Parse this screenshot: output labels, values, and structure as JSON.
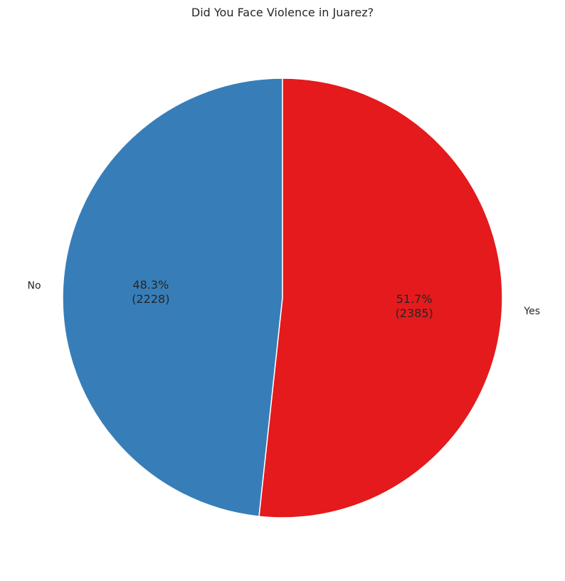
{
  "chart_data": {
    "type": "pie",
    "title": "Did You Face Violence in Juarez?",
    "categories": [
      "No",
      "Yes"
    ],
    "values": [
      2228,
      2385
    ],
    "percent_labels": [
      "48.3%",
      "51.7%"
    ],
    "count_labels": [
      "(2228)",
      "(2385)"
    ],
    "colors": [
      "#377eb8",
      "#e41a1c"
    ],
    "start_angle": "top, counterclockwise",
    "legend": "none"
  }
}
